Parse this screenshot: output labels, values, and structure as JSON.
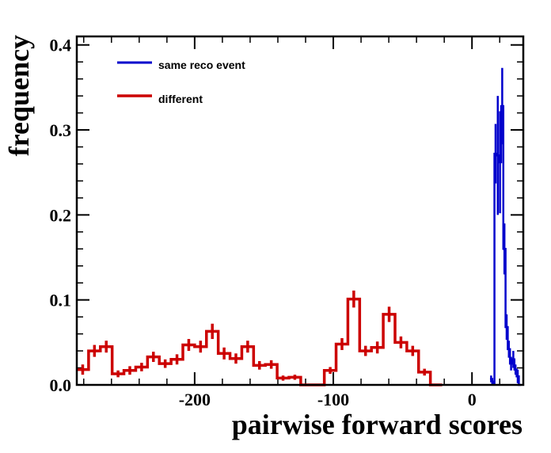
{
  "chart_data": {
    "type": "histogram",
    "title": "",
    "xlabel": "pairwise forward scores",
    "ylabel": "frequency",
    "xlim": [
      -285,
      37
    ],
    "ylim": [
      0,
      0.41
    ],
    "x_ticks": [
      -200,
      -100,
      0
    ],
    "x_tick_labels": [
      "-200",
      "-100",
      "0"
    ],
    "y_ticks": [
      0.0,
      0.1,
      0.2,
      0.3,
      0.4
    ],
    "y_tick_labels": [
      "0.0",
      "0.1",
      "0.2",
      "0.3",
      "0.4"
    ],
    "grid": false,
    "legend_position": "top-left",
    "series": [
      {
        "name": "same reco event",
        "color": "#0000cc",
        "bin_width": 1.6,
        "bins": [
          {
            "x0": 13.0,
            "y": 0.007
          },
          {
            "x0": 14.6,
            "y": 0.002
          },
          {
            "x0": 16.2,
            "y": 0.272
          },
          {
            "x0": 17.8,
            "y": 0.27
          },
          {
            "x0": 19.4,
            "y": 0.262
          },
          {
            "x0": 21.0,
            "y": 0.328
          },
          {
            "x0": 22.6,
            "y": 0.16
          },
          {
            "x0": 24.2,
            "y": 0.068
          },
          {
            "x0": 25.8,
            "y": 0.042
          },
          {
            "x0": 27.4,
            "y": 0.025
          },
          {
            "x0": 29.0,
            "y": 0.03
          },
          {
            "x0": 30.6,
            "y": 0.018
          },
          {
            "x0": 32.2,
            "y": 0.01
          },
          {
            "x0": 33.8,
            "y": 0.0
          }
        ],
        "errors": [
          0.004,
          0.003,
          0.035,
          0.07,
          0.06,
          0.045,
          0.03,
          0.015,
          0.01,
          0.008,
          0.01,
          0.006,
          0.008,
          0.0
        ]
      },
      {
        "name": "different",
        "color": "#cc0000",
        "bin_width": 8.5,
        "bins": [
          {
            "x0": -285.0,
            "y": 0.018
          },
          {
            "x0": -276.5,
            "y": 0.04
          },
          {
            "x0": -268.0,
            "y": 0.045
          },
          {
            "x0": -259.5,
            "y": 0.013
          },
          {
            "x0": -251.0,
            "y": 0.017
          },
          {
            "x0": -242.5,
            "y": 0.021
          },
          {
            "x0": -234.0,
            "y": 0.033
          },
          {
            "x0": -225.5,
            "y": 0.025
          },
          {
            "x0": -217.0,
            "y": 0.03
          },
          {
            "x0": -208.5,
            "y": 0.047
          },
          {
            "x0": -200.0,
            "y": 0.045
          },
          {
            "x0": -191.5,
            "y": 0.063
          },
          {
            "x0": -183.0,
            "y": 0.037
          },
          {
            "x0": -174.5,
            "y": 0.031
          },
          {
            "x0": -166.0,
            "y": 0.045
          },
          {
            "x0": -157.5,
            "y": 0.023
          },
          {
            "x0": -149.0,
            "y": 0.024
          },
          {
            "x0": -140.5,
            "y": 0.008
          },
          {
            "x0": -132.0,
            "y": 0.009
          },
          {
            "x0": -123.5,
            "y": 0.0
          },
          {
            "x0": -115.0,
            "y": 0.0
          },
          {
            "x0": -106.5,
            "y": 0.017
          },
          {
            "x0": -98.0,
            "y": 0.048
          },
          {
            "x0": -89.5,
            "y": 0.101
          },
          {
            "x0": -81.0,
            "y": 0.04
          },
          {
            "x0": -72.5,
            "y": 0.044
          },
          {
            "x0": -64.0,
            "y": 0.083
          },
          {
            "x0": -55.5,
            "y": 0.05
          },
          {
            "x0": -47.0,
            "y": 0.04
          },
          {
            "x0": -38.5,
            "y": 0.015
          },
          {
            "x0": -30.0,
            "y": 0.0
          }
        ],
        "errors": [
          0.006,
          0.007,
          0.007,
          0.004,
          0.005,
          0.005,
          0.006,
          0.005,
          0.006,
          0.007,
          0.007,
          0.009,
          0.007,
          0.006,
          0.007,
          0.005,
          0.005,
          0.003,
          0.003,
          0.0,
          0.0,
          0.004,
          0.007,
          0.01,
          0.006,
          0.007,
          0.009,
          0.007,
          0.006,
          0.004,
          0.0
        ]
      }
    ]
  }
}
